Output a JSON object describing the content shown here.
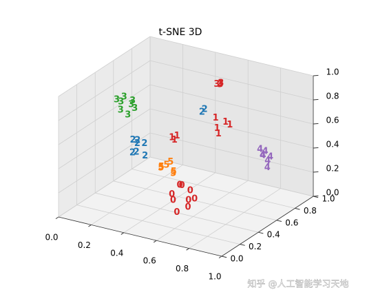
{
  "chart_data": {
    "type": "scatter3d",
    "title": "t-SNE 3D",
    "xlim": [
      0,
      1
    ],
    "ylim": [
      0,
      1
    ],
    "zlim": [
      0,
      1
    ],
    "xticks": [
      {
        "value": 0,
        "label": "0.0"
      },
      {
        "value": 0.2,
        "label": "0.2"
      },
      {
        "value": 0.4,
        "label": "0.4"
      },
      {
        "value": 0.6,
        "label": "0.6"
      },
      {
        "value": 0.8,
        "label": "0.8"
      },
      {
        "value": 1,
        "label": "1.0"
      }
    ],
    "yticks": [
      {
        "value": 0,
        "label": "0.0"
      },
      {
        "value": 0.2,
        "label": "0.2"
      },
      {
        "value": 0.4,
        "label": "0.4"
      },
      {
        "value": 0.6,
        "label": "0.6"
      },
      {
        "value": 0.8,
        "label": "0.8"
      },
      {
        "value": 1,
        "label": "1.0"
      }
    ],
    "zticks": [
      {
        "value": 0,
        "label": "0.0"
      },
      {
        "value": 0.2,
        "label": "0.2"
      },
      {
        "value": 0.4,
        "label": "0.4"
      },
      {
        "value": 0.6,
        "label": "0.6"
      },
      {
        "value": 0.8,
        "label": "0.8"
      },
      {
        "value": 1,
        "label": "1.0"
      }
    ],
    "grid": true,
    "series": [
      {
        "label": "3",
        "color": "#2ca02c",
        "x": [
          0.19,
          0.23,
          0.17,
          0.24,
          0.21,
          0.2,
          0.26,
          0.16
        ],
        "y": [
          0.34,
          0.4,
          0.38,
          0.33,
          0.42,
          0.36,
          0.37,
          0.35
        ],
        "z": [
          0.78,
          0.84,
          0.82,
          0.76,
          0.79,
          0.88,
          0.8,
          0.85
        ]
      },
      {
        "label": "2",
        "color": "#1f77b4",
        "x": [
          0.24,
          0.28,
          0.22,
          0.27,
          0.3,
          0.23,
          0.26,
          0.38,
          0.39
        ],
        "y": [
          0.38,
          0.44,
          0.42,
          0.37,
          0.41,
          0.45,
          0.4,
          0.89,
          0.9
        ],
        "z": [
          0.42,
          0.48,
          0.5,
          0.44,
          0.4,
          0.46,
          0.52,
          0.55,
          0.57
        ]
      },
      {
        "label": "3",
        "color": "#d62728",
        "x": [
          0.42,
          0.44,
          0.43,
          0.45
        ],
        "y": [
          0.98,
          0.99,
          1.0,
          0.97
        ],
        "z": [
          0.75,
          0.76,
          0.74,
          0.77
        ]
      },
      {
        "label": "1",
        "color": "#d62728",
        "x": [
          0.5,
          0.53,
          0.48,
          0.52,
          0.55,
          0.42,
          0.44,
          0.43
        ],
        "y": [
          0.84,
          0.88,
          0.86,
          0.82,
          0.89,
          0.49,
          0.51,
          0.5
        ],
        "z": [
          0.48,
          0.52,
          0.55,
          0.45,
          0.5,
          0.55,
          0.56,
          0.53
        ]
      },
      {
        "label": "4",
        "color": "#9467bd",
        "x": [
          0.74,
          0.76,
          0.73,
          0.77,
          0.75,
          0.78,
          0.72
        ],
        "y": [
          0.91,
          0.93,
          0.9,
          0.94,
          0.92,
          0.89,
          0.95
        ],
        "z": [
          0.3,
          0.25,
          0.35,
          0.28,
          0.33,
          0.22,
          0.27
        ]
      },
      {
        "label": "5",
        "color": "#ff7f0e",
        "x": [
          0.42,
          0.47,
          0.44,
          0.49,
          0.4,
          0.46
        ],
        "y": [
          0.37,
          0.42,
          0.44,
          0.38,
          0.41,
          0.36
        ],
        "z": [
          0.36,
          0.32,
          0.38,
          0.33,
          0.34,
          0.4
        ]
      },
      {
        "label": "0",
        "color": "#d62728",
        "x": [
          0.5,
          0.56,
          0.58,
          0.52,
          0.47,
          0.6,
          0.54,
          0.49,
          0.57
        ],
        "y": [
          0.36,
          0.44,
          0.38,
          0.42,
          0.4,
          0.35,
          0.33,
          0.45,
          0.47
        ],
        "z": [
          0.12,
          0.18,
          0.08,
          0.22,
          0.14,
          0.16,
          0.05,
          0.2,
          0.1
        ]
      }
    ],
    "watermark": "知乎 @人工智能学习天地"
  }
}
